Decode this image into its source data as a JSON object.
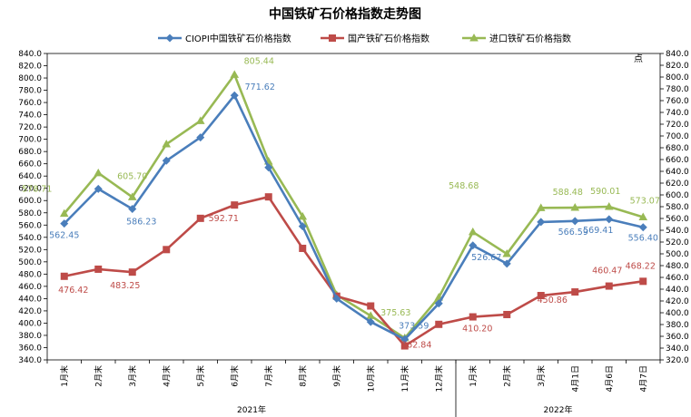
{
  "chart_data": {
    "type": "line",
    "title": "中国铁矿石价格指数走势图",
    "y_unit_label": "点",
    "ylim": [
      340,
      840
    ],
    "yticks": [
      340,
      360,
      380,
      400,
      420,
      440,
      460,
      480,
      500,
      520,
      540,
      560,
      580,
      600,
      620,
      640,
      660,
      680,
      700,
      720,
      740,
      760,
      780,
      800,
      820,
      840
    ],
    "y2lim": [
      320,
      840
    ],
    "y2ticks": [
      320,
      340,
      360,
      380,
      400,
      420,
      440,
      460,
      480,
      500,
      520,
      540,
      560,
      580,
      600,
      620,
      640,
      660,
      680,
      700,
      720,
      740,
      760,
      780,
      800,
      820,
      840
    ],
    "categories": [
      "1月末",
      "2月末",
      "3月末",
      "4月末",
      "5月末",
      "6月末",
      "7月末",
      "8月末",
      "9月末",
      "10月末",
      "11月末",
      "12月末",
      "1月末",
      "2月末",
      "3月末",
      "4月1日",
      "4月6日",
      "4月7日"
    ],
    "groups": [
      {
        "label": "2021年",
        "start": 0,
        "end": 11
      },
      {
        "label": "2022年",
        "start": 12,
        "end": 17
      }
    ],
    "series": [
      {
        "name": "CIOPI中国铁矿石价格指数",
        "color": "#4a7ebb",
        "marker": "diamond",
        "values": [
          562.45,
          619,
          586.23,
          665,
          703,
          771.62,
          654,
          558,
          440,
          402,
          373.59,
          432,
          526.67,
          497,
          565,
          566.59,
          569.41,
          556.4
        ],
        "labels": {
          "0": "562.45",
          "2": "586.23",
          "5": "771.62",
          "10": "373.59",
          "12": "526.67",
          "15": "566.59",
          "16": "569.41",
          "17": "556.40"
        }
      },
      {
        "name": "国产铁矿石价格指数",
        "color": "#be4b48",
        "marker": "square",
        "values": [
          476.42,
          488,
          483.25,
          520,
          571,
          592.71,
          606,
          522,
          444,
          428,
          362.84,
          398,
          410.2,
          414,
          445,
          450.86,
          460.47,
          468.22
        ],
        "labels": {
          "0": "476.42",
          "2": "483.25",
          "5": "592.71",
          "10": "362.84",
          "12": "410.20",
          "15": "450.86",
          "16": "460.47",
          "17": "468.22"
        }
      },
      {
        "name": "进口铁矿石价格指数",
        "color": "#98b954",
        "marker": "triangle",
        "values": [
          578.71,
          645,
          605.7,
          692,
          730,
          805.44,
          664,
          574,
          446,
          412,
          375.63,
          442,
          548.68,
          513,
          588,
          588.48,
          590.01,
          573.07
        ],
        "labels": {
          "0": "578.71",
          "2": "605.70",
          "5": "805.44",
          "10": "375.63",
          "12": "548.68",
          "15": "588.48",
          "16": "590.01",
          "17": "573.07"
        }
      }
    ],
    "legend_position": "top"
  }
}
